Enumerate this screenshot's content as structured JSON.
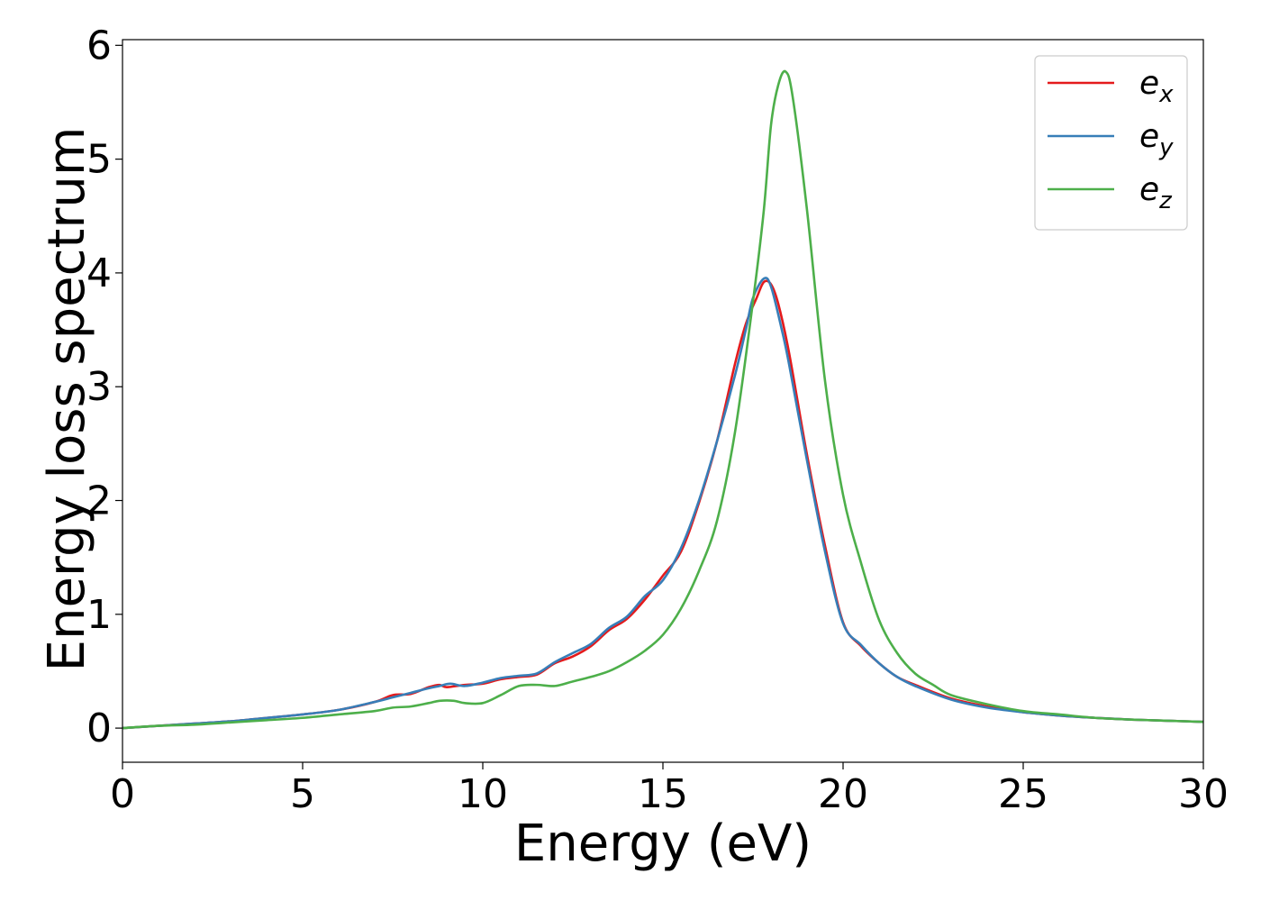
{
  "chart_data": {
    "type": "line",
    "xlabel": "Energy (eV)",
    "ylabel": "Energy loss spectrum",
    "xlim": [
      0,
      30
    ],
    "ylim": [
      -0.3,
      6.05
    ],
    "xticks": [
      0,
      5,
      10,
      15,
      20,
      25,
      30
    ],
    "yticks": [
      0,
      1,
      2,
      3,
      4,
      5,
      6
    ],
    "grid": false,
    "legend_position": "top-right",
    "series": [
      {
        "name": "e",
        "subscript": "x",
        "color": "#e41a1c",
        "points": [
          [
            0,
            0.0
          ],
          [
            0.5,
            0.01
          ],
          [
            1,
            0.02
          ],
          [
            2,
            0.04
          ],
          [
            3,
            0.06
          ],
          [
            4,
            0.09
          ],
          [
            5,
            0.12
          ],
          [
            6,
            0.16
          ],
          [
            7,
            0.23
          ],
          [
            7.5,
            0.29
          ],
          [
            8,
            0.3
          ],
          [
            8.5,
            0.36
          ],
          [
            8.8,
            0.38
          ],
          [
            9,
            0.36
          ],
          [
            9.5,
            0.38
          ],
          [
            10,
            0.39
          ],
          [
            10.5,
            0.43
          ],
          [
            11,
            0.45
          ],
          [
            11.5,
            0.47
          ],
          [
            12,
            0.57
          ],
          [
            12.5,
            0.63
          ],
          [
            13,
            0.72
          ],
          [
            13.5,
            0.86
          ],
          [
            14,
            0.96
          ],
          [
            14.5,
            1.13
          ],
          [
            15,
            1.34
          ],
          [
            15.5,
            1.55
          ],
          [
            16,
            1.98
          ],
          [
            16.5,
            2.52
          ],
          [
            17,
            3.2
          ],
          [
            17.3,
            3.55
          ],
          [
            17.6,
            3.78
          ],
          [
            17.8,
            3.92
          ],
          [
            18.0,
            3.9
          ],
          [
            18.2,
            3.73
          ],
          [
            18.5,
            3.3
          ],
          [
            19,
            2.4
          ],
          [
            19.5,
            1.6
          ],
          [
            20,
            0.93
          ],
          [
            20.5,
            0.72
          ],
          [
            21,
            0.57
          ],
          [
            21.5,
            0.45
          ],
          [
            22,
            0.38
          ],
          [
            23,
            0.26
          ],
          [
            24,
            0.19
          ],
          [
            25,
            0.14
          ],
          [
            26,
            0.11
          ],
          [
            27,
            0.09
          ],
          [
            28,
            0.075
          ],
          [
            29,
            0.065
          ],
          [
            30,
            0.055
          ]
        ]
      },
      {
        "name": "e",
        "subscript": "y",
        "color": "#377eb8",
        "points": [
          [
            0,
            0.0
          ],
          [
            0.5,
            0.01
          ],
          [
            1,
            0.02
          ],
          [
            2,
            0.04
          ],
          [
            3,
            0.06
          ],
          [
            4,
            0.09
          ],
          [
            5,
            0.12
          ],
          [
            6,
            0.16
          ],
          [
            7,
            0.23
          ],
          [
            7.5,
            0.27
          ],
          [
            8,
            0.31
          ],
          [
            8.5,
            0.35
          ],
          [
            8.8,
            0.37
          ],
          [
            9.1,
            0.39
          ],
          [
            9.5,
            0.37
          ],
          [
            10,
            0.4
          ],
          [
            10.5,
            0.44
          ],
          [
            11,
            0.46
          ],
          [
            11.5,
            0.48
          ],
          [
            12,
            0.58
          ],
          [
            12.5,
            0.66
          ],
          [
            13,
            0.74
          ],
          [
            13.5,
            0.88
          ],
          [
            14,
            0.98
          ],
          [
            14.5,
            1.16
          ],
          [
            15,
            1.3
          ],
          [
            15.5,
            1.58
          ],
          [
            16,
            2.0
          ],
          [
            16.5,
            2.52
          ],
          [
            17,
            3.1
          ],
          [
            17.3,
            3.5
          ],
          [
            17.5,
            3.78
          ],
          [
            17.8,
            3.95
          ],
          [
            18.0,
            3.88
          ],
          [
            18.3,
            3.5
          ],
          [
            18.5,
            3.2
          ],
          [
            19,
            2.35
          ],
          [
            19.5,
            1.55
          ],
          [
            20,
            0.92
          ],
          [
            20.5,
            0.73
          ],
          [
            21,
            0.57
          ],
          [
            21.5,
            0.45
          ],
          [
            22,
            0.37
          ],
          [
            23,
            0.25
          ],
          [
            24,
            0.18
          ],
          [
            25,
            0.14
          ],
          [
            26,
            0.11
          ],
          [
            27,
            0.09
          ],
          [
            28,
            0.075
          ],
          [
            29,
            0.065
          ],
          [
            30,
            0.055
          ]
        ]
      },
      {
        "name": "e",
        "subscript": "z",
        "color": "#4daf4a",
        "points": [
          [
            0,
            0.0
          ],
          [
            1,
            0.02
          ],
          [
            2,
            0.03
          ],
          [
            3,
            0.05
          ],
          [
            4,
            0.07
          ],
          [
            5,
            0.09
          ],
          [
            6,
            0.12
          ],
          [
            7,
            0.15
          ],
          [
            7.5,
            0.18
          ],
          [
            8,
            0.19
          ],
          [
            8.5,
            0.22
          ],
          [
            8.8,
            0.24
          ],
          [
            9.2,
            0.24
          ],
          [
            9.5,
            0.22
          ],
          [
            10,
            0.22
          ],
          [
            10.5,
            0.29
          ],
          [
            11,
            0.37
          ],
          [
            11.5,
            0.38
          ],
          [
            12,
            0.37
          ],
          [
            12.5,
            0.41
          ],
          [
            13,
            0.45
          ],
          [
            13.5,
            0.5
          ],
          [
            14,
            0.58
          ],
          [
            14.5,
            0.68
          ],
          [
            15,
            0.82
          ],
          [
            15.5,
            1.05
          ],
          [
            16,
            1.38
          ],
          [
            16.5,
            1.82
          ],
          [
            17,
            2.6
          ],
          [
            17.5,
            3.75
          ],
          [
            17.8,
            4.55
          ],
          [
            18,
            5.3
          ],
          [
            18.2,
            5.65
          ],
          [
            18.4,
            5.77
          ],
          [
            18.6,
            5.55
          ],
          [
            19,
            4.55
          ],
          [
            19.5,
            3.05
          ],
          [
            20,
            2.05
          ],
          [
            20.5,
            1.45
          ],
          [
            21,
            0.95
          ],
          [
            21.5,
            0.66
          ],
          [
            22,
            0.48
          ],
          [
            22.5,
            0.38
          ],
          [
            23,
            0.29
          ],
          [
            24,
            0.21
          ],
          [
            25,
            0.15
          ],
          [
            26,
            0.12
          ],
          [
            27,
            0.09
          ],
          [
            28,
            0.075
          ],
          [
            29,
            0.065
          ],
          [
            30,
            0.055
          ]
        ]
      }
    ]
  }
}
